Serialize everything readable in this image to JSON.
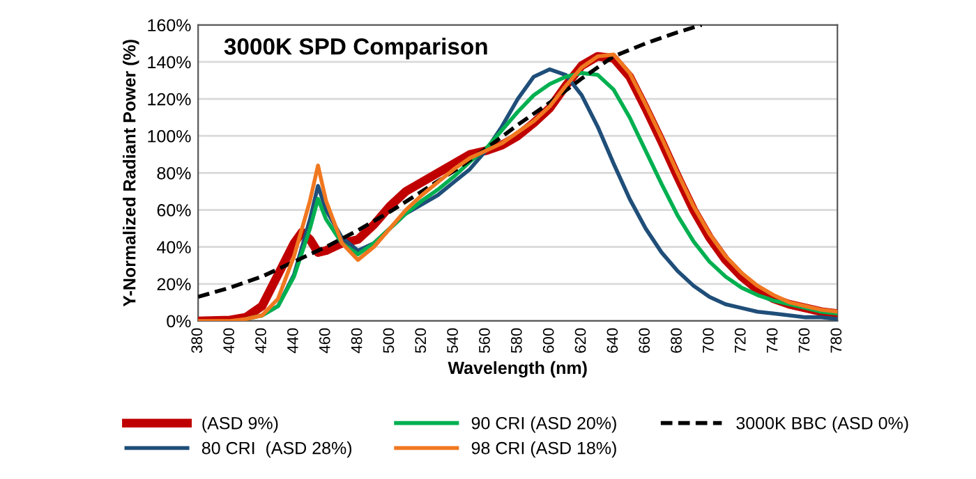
{
  "chart_data": {
    "type": "line",
    "title": "3000K SPD Comparison",
    "xlabel": "Wavelength (nm)",
    "ylabel": "Y-Normalized Radiant Power (%)",
    "xlim": [
      380,
      780
    ],
    "xticks": [
      380,
      400,
      420,
      440,
      460,
      480,
      500,
      520,
      540,
      560,
      580,
      600,
      620,
      640,
      660,
      680,
      700,
      720,
      740,
      760,
      780
    ],
    "ylim": [
      0,
      160
    ],
    "yticks": [
      {
        "value": 0,
        "label": "0%"
      },
      {
        "value": 20,
        "label": "20%"
      },
      {
        "value": 40,
        "label": "40%"
      },
      {
        "value": 60,
        "label": "60%"
      },
      {
        "value": 80,
        "label": "80%"
      },
      {
        "value": 100,
        "label": "100%"
      },
      {
        "value": 120,
        "label": "120%"
      },
      {
        "value": 140,
        "label": "140%"
      },
      {
        "value": 160,
        "label": "160%"
      }
    ],
    "grid": "y",
    "legend": "bottom",
    "marker": "none",
    "series": [
      {
        "name": "(ASD 9%)",
        "color": "#c00000",
        "x": [
          380,
          400,
          410,
          420,
          430,
          440,
          445,
          450,
          455,
          460,
          465,
          470,
          480,
          490,
          500,
          510,
          520,
          530,
          540,
          550,
          560,
          570,
          580,
          590,
          600,
          610,
          620,
          630,
          640,
          650,
          660,
          670,
          680,
          690,
          700,
          710,
          720,
          730,
          740,
          750,
          760,
          770,
          780
        ],
        "values": [
          0,
          0.5,
          2,
          8,
          25,
          42,
          48,
          44,
          37,
          38,
          40,
          42,
          44,
          52,
          62,
          70,
          75,
          80,
          85,
          90,
          92,
          95,
          100,
          107,
          115,
          127,
          138,
          143,
          142,
          132,
          115,
          97,
          78,
          60,
          45,
          33,
          24,
          17,
          12,
          9,
          7,
          5,
          4
        ]
      },
      {
        "name": "80 CRI  (ASD 28%)",
        "color": "#1f4e79",
        "x": [
          420,
          430,
          440,
          450,
          455,
          460,
          470,
          480,
          490,
          500,
          510,
          520,
          530,
          540,
          550,
          560,
          570,
          580,
          590,
          600,
          610,
          620,
          630,
          640,
          650,
          660,
          670,
          680,
          690,
          700,
          710,
          720,
          730,
          740,
          750,
          760,
          770,
          780
        ],
        "values": [
          3,
          8,
          25,
          55,
          73,
          60,
          45,
          38,
          42,
          50,
          58,
          63,
          68,
          75,
          82,
          92,
          105,
          120,
          132,
          136,
          133,
          122,
          105,
          85,
          66,
          50,
          37,
          27,
          19,
          13,
          9,
          7,
          5,
          4,
          3,
          2,
          2,
          1
        ]
      },
      {
        "name": "90 CRI (ASD 20%)",
        "color": "#00b050",
        "x": [
          410,
          420,
          430,
          440,
          450,
          455,
          460,
          470,
          480,
          490,
          500,
          510,
          520,
          530,
          540,
          550,
          560,
          570,
          580,
          590,
          600,
          610,
          620,
          630,
          640,
          650,
          660,
          670,
          680,
          690,
          700,
          710,
          720,
          730,
          740,
          750,
          760,
          770,
          780
        ],
        "values": [
          1,
          3,
          8,
          24,
          50,
          66,
          55,
          42,
          36,
          42,
          50,
          58,
          65,
          71,
          78,
          86,
          93,
          103,
          113,
          122,
          128,
          132,
          134,
          133,
          125,
          110,
          92,
          74,
          57,
          43,
          32,
          24,
          18,
          14,
          11,
          9,
          7,
          5,
          4
        ]
      },
      {
        "name": "98 CRI (ASD 18%)",
        "color": "#f07820",
        "x": [
          380,
          400,
          410,
          420,
          430,
          440,
          450,
          455,
          460,
          470,
          480,
          490,
          500,
          510,
          520,
          530,
          540,
          550,
          560,
          570,
          580,
          590,
          600,
          610,
          620,
          630,
          640,
          650,
          660,
          670,
          680,
          690,
          700,
          710,
          720,
          730,
          740,
          750,
          760,
          770,
          780
        ],
        "values": [
          0,
          0,
          1,
          3,
          12,
          35,
          65,
          84,
          65,
          42,
          33,
          40,
          50,
          60,
          68,
          75,
          82,
          88,
          92,
          96,
          102,
          108,
          116,
          127,
          137,
          143,
          144,
          134,
          117,
          99,
          80,
          62,
          47,
          35,
          26,
          19,
          14,
          10,
          8,
          6,
          5
        ]
      },
      {
        "name": "3000K BBC (ASD 0%)",
        "color": "#000000",
        "line_style": "dashed",
        "x": [
          380,
          400,
          420,
          440,
          460,
          480,
          500,
          520,
          540,
          560,
          580,
          600,
          620,
          640,
          660,
          680,
          695
        ],
        "values": [
          13,
          18,
          24,
          32,
          40,
          49,
          59,
          70,
          81,
          93,
          106,
          118,
          131,
          143,
          150,
          156,
          160
        ]
      }
    ]
  }
}
